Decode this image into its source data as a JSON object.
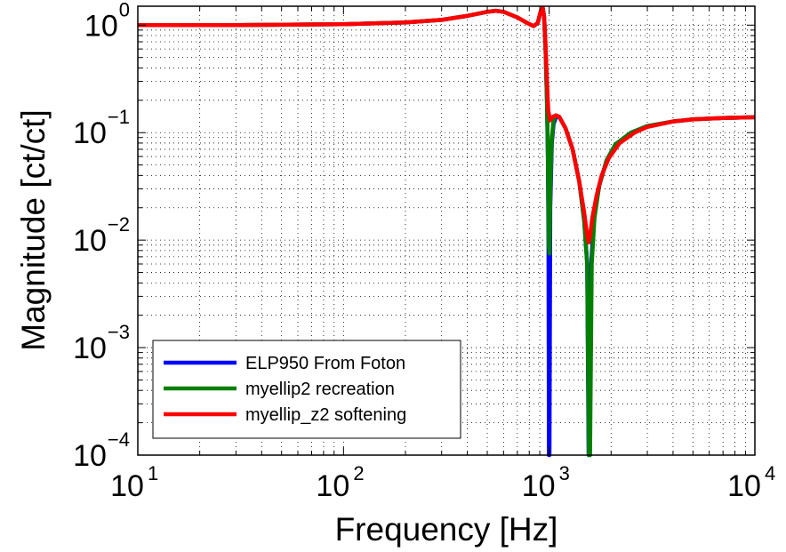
{
  "chart_data": {
    "type": "line",
    "xscale": "log",
    "yscale": "log",
    "xlim": [
      10,
      10000
    ],
    "ylim": [
      0.0001,
      1.5
    ],
    "grid": true,
    "xlabel": "Frequency [Hz]",
    "ylabel": "Magnitude [ct/ct]",
    "legend_position": "bottom-left",
    "x_ticks": [
      {
        "base": "10",
        "exp": "1",
        "value": 10
      },
      {
        "base": "10",
        "exp": "2",
        "value": 100
      },
      {
        "base": "10",
        "exp": "3",
        "value": 1000
      },
      {
        "base": "10",
        "exp": "4",
        "value": 10000
      }
    ],
    "y_ticks": [
      {
        "base": "10",
        "exp": "0",
        "value": 1
      },
      {
        "base": "10",
        "exp": "−1",
        "value": 0.1
      },
      {
        "base": "10",
        "exp": "−2",
        "value": 0.01
      },
      {
        "base": "10",
        "exp": "−3",
        "value": 0.001
      },
      {
        "base": "10",
        "exp": "−4",
        "value": 0.0001
      }
    ],
    "series": [
      {
        "name": "ELP950 From Foton",
        "color": "#0000ff",
        "points": [
          [
            10,
            1.0
          ],
          [
            30,
            1.0
          ],
          [
            100,
            1.02
          ],
          [
            200,
            1.06
          ],
          [
            300,
            1.12
          ],
          [
            400,
            1.22
          ],
          [
            500,
            1.33
          ],
          [
            550,
            1.36
          ],
          [
            600,
            1.33
          ],
          [
            700,
            1.18
          ],
          [
            780,
            1.05
          ],
          [
            840,
            0.98
          ],
          [
            880,
            1.05
          ],
          [
            910,
            1.35
          ],
          [
            930,
            1.45
          ],
          [
            945,
            1.2
          ],
          [
            960,
            0.6
          ],
          [
            975,
            0.2
          ],
          [
            985,
            0.06
          ],
          [
            992,
            0.01
          ],
          [
            997,
            0.0001
          ],
          [
            1003,
            0.0001
          ],
          [
            1012,
            0.02
          ],
          [
            1030,
            0.08
          ],
          [
            1050,
            0.12
          ],
          [
            1080,
            0.14
          ],
          [
            1120,
            0.14
          ],
          [
            1200,
            0.11
          ],
          [
            1300,
            0.07
          ],
          [
            1400,
            0.035
          ],
          [
            1480,
            0.015
          ],
          [
            1530,
            0.006
          ],
          [
            1555,
            0.0001
          ],
          [
            1575,
            0.0001
          ],
          [
            1600,
            0.006
          ],
          [
            1650,
            0.016
          ],
          [
            1750,
            0.032
          ],
          [
            1900,
            0.055
          ],
          [
            2100,
            0.078
          ],
          [
            2500,
            0.1
          ],
          [
            3000,
            0.115
          ],
          [
            4000,
            0.127
          ],
          [
            5000,
            0.133
          ],
          [
            7000,
            0.137
          ],
          [
            10000,
            0.139
          ]
        ]
      },
      {
        "name": "myellip2 recreation",
        "color": "#008000",
        "points": [
          [
            10,
            1.0
          ],
          [
            30,
            1.0
          ],
          [
            100,
            1.02
          ],
          [
            200,
            1.06
          ],
          [
            300,
            1.12
          ],
          [
            400,
            1.22
          ],
          [
            500,
            1.33
          ],
          [
            550,
            1.36
          ],
          [
            600,
            1.33
          ],
          [
            700,
            1.18
          ],
          [
            780,
            1.05
          ],
          [
            840,
            0.98
          ],
          [
            880,
            1.05
          ],
          [
            910,
            1.35
          ],
          [
            930,
            1.45
          ],
          [
            945,
            1.2
          ],
          [
            960,
            0.6
          ],
          [
            975,
            0.2
          ],
          [
            985,
            0.07
          ],
          [
            995,
            0.009
          ],
          [
            1003,
            0.0075
          ],
          [
            1012,
            0.03
          ],
          [
            1030,
            0.09
          ],
          [
            1050,
            0.13
          ],
          [
            1080,
            0.145
          ],
          [
            1120,
            0.14
          ],
          [
            1200,
            0.11
          ],
          [
            1300,
            0.07
          ],
          [
            1400,
            0.035
          ],
          [
            1480,
            0.015
          ],
          [
            1530,
            0.006
          ],
          [
            1560,
            0.0001
          ],
          [
            1580,
            0.0001
          ],
          [
            1610,
            0.006
          ],
          [
            1660,
            0.016
          ],
          [
            1750,
            0.032
          ],
          [
            1900,
            0.055
          ],
          [
            2100,
            0.078
          ],
          [
            2500,
            0.1
          ],
          [
            3000,
            0.115
          ],
          [
            4000,
            0.127
          ],
          [
            5000,
            0.133
          ],
          [
            7000,
            0.137
          ],
          [
            10000,
            0.139
          ]
        ]
      },
      {
        "name": "myellip_z2 softening",
        "color": "#ff0000",
        "points": [
          [
            10,
            1.0
          ],
          [
            30,
            1.0
          ],
          [
            100,
            1.02
          ],
          [
            200,
            1.06
          ],
          [
            300,
            1.12
          ],
          [
            400,
            1.22
          ],
          [
            500,
            1.33
          ],
          [
            550,
            1.36
          ],
          [
            600,
            1.33
          ],
          [
            700,
            1.18
          ],
          [
            780,
            1.05
          ],
          [
            840,
            0.98
          ],
          [
            880,
            1.05
          ],
          [
            910,
            1.35
          ],
          [
            930,
            1.45
          ],
          [
            945,
            1.2
          ],
          [
            960,
            0.65
          ],
          [
            975,
            0.3
          ],
          [
            990,
            0.16
          ],
          [
            1010,
            0.13
          ],
          [
            1040,
            0.14
          ],
          [
            1080,
            0.145
          ],
          [
            1120,
            0.14
          ],
          [
            1200,
            0.11
          ],
          [
            1300,
            0.07
          ],
          [
            1400,
            0.035
          ],
          [
            1480,
            0.018
          ],
          [
            1530,
            0.011
          ],
          [
            1555,
            0.0095
          ],
          [
            1580,
            0.011
          ],
          [
            1620,
            0.016
          ],
          [
            1700,
            0.026
          ],
          [
            1800,
            0.04
          ],
          [
            1950,
            0.058
          ],
          [
            2200,
            0.08
          ],
          [
            2600,
            0.1
          ],
          [
            3000,
            0.113
          ],
          [
            4000,
            0.127
          ],
          [
            5000,
            0.133
          ],
          [
            7000,
            0.137
          ],
          [
            10000,
            0.139
          ]
        ]
      }
    ]
  }
}
